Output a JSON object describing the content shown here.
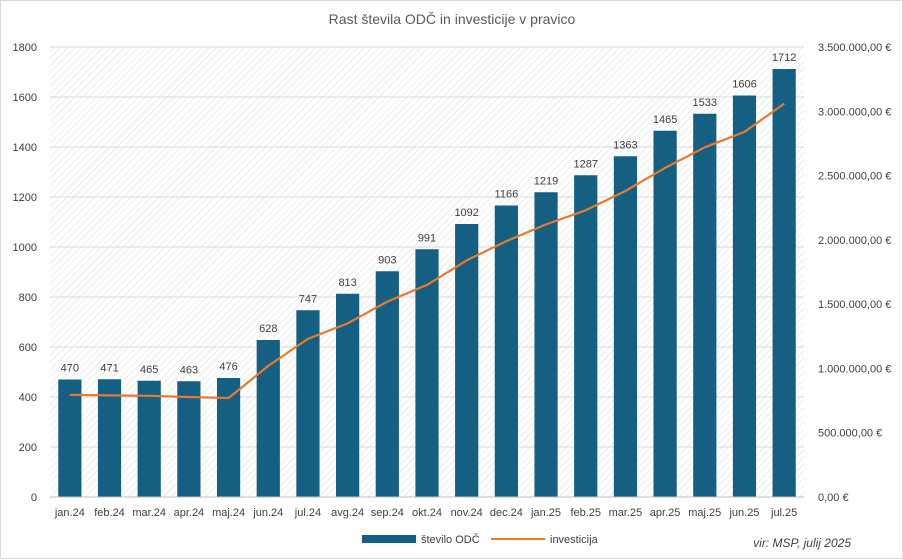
{
  "chart_data": {
    "type": "bar",
    "title": "Rast števila ODČ in investicije v pravico",
    "categories": [
      "jan.24",
      "feb.24",
      "mar.24",
      "apr.24",
      "maj.24",
      "jun.24",
      "jul.24",
      "avg.24",
      "sep.24",
      "okt.24",
      "nov.24",
      "dec.24",
      "jan.25",
      "feb.25",
      "mar.25",
      "apr.25",
      "maj.25",
      "jun.25",
      "jul.25"
    ],
    "series": [
      {
        "name": "število ODČ",
        "type": "bar",
        "axis": "left",
        "color": "#155f82",
        "values": [
          470,
          471,
          465,
          463,
          476,
          628,
          747,
          813,
          903,
          991,
          1092,
          1166,
          1219,
          1287,
          1363,
          1465,
          1533,
          1606,
          1712
        ],
        "labels": [
          "470",
          "471",
          "465",
          "463",
          "476",
          "628",
          "747",
          "813",
          "903",
          "991",
          "1092",
          "1166",
          "1219",
          "1287",
          "1363",
          "1465",
          "1533",
          "1606",
          "1712"
        ]
      },
      {
        "name": "investicija",
        "type": "line",
        "axis": "right",
        "color": "#e8792e",
        "values": [
          795000,
          790000,
          787000,
          778000,
          770000,
          1020000,
          1230000,
          1350000,
          1520000,
          1650000,
          1840000,
          1990000,
          2120000,
          2230000,
          2380000,
          2560000,
          2720000,
          2840000,
          3060000
        ]
      }
    ],
    "y_left": {
      "min": 0,
      "max": 1800,
      "step": 200,
      "ticks": [
        "0",
        "200",
        "400",
        "600",
        "800",
        "1000",
        "1200",
        "1400",
        "1600",
        "1800"
      ]
    },
    "y_right": {
      "min": 0,
      "max": 3500000,
      "step": 500000,
      "ticks": [
        "0,00 €",
        "500.000,00 €",
        "1.000.000,00 €",
        "1.500.000,00 €",
        "2.000.000,00 €",
        "2.500.000,00 €",
        "3.000.000,00 €",
        "3.500.000,00 €"
      ]
    },
    "legend": {
      "position": "bottom",
      "items": [
        "število ODČ",
        "investicija"
      ]
    },
    "source_note": "vir: MSP, julij 2025",
    "plot_background": "diagonal hatch"
  }
}
